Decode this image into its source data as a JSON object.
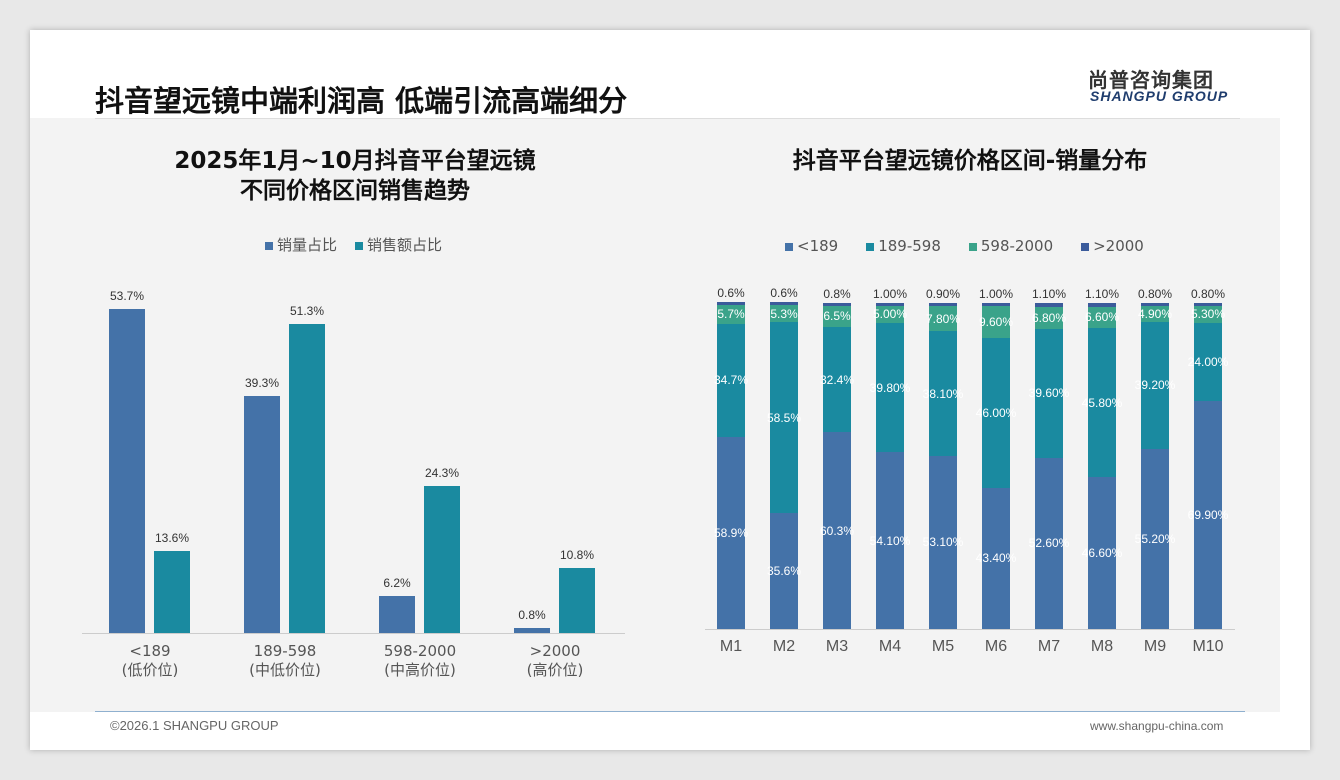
{
  "header": {
    "title": "抖音望远镜中端利润高 低端引流高端细分",
    "logo_cn": "尚普咨询集团",
    "logo_en": "SHANGPU GROUP"
  },
  "footer": {
    "copyright": "©2026.1 SHANGPU GROUP",
    "url": "www.shangpu-china.com"
  },
  "colors": {
    "lt189": "#4472a8",
    "r189_598": "#1a8aa0",
    "r598_2000": "#3aa38a",
    "gt2000": "#3b5b9b"
  },
  "chart_data": [
    {
      "type": "bar",
      "title": "2025年1月~10月抖音平台望远镜",
      "subtitle": "不同价格区间销售趋势",
      "categories": [
        "<189",
        "189-598",
        "598-2000",
        ">2000"
      ],
      "category_sub": [
        "(低价位)",
        "(中低价位)",
        "(中高价位)",
        "(高价位)"
      ],
      "series": [
        {
          "name": "销量占比",
          "values": [
            53.7,
            39.3,
            6.2,
            0.8
          ],
          "labels": [
            "53.7%",
            "39.3%",
            "6.2%",
            "0.8%"
          ]
        },
        {
          "name": "销售额占比",
          "values": [
            13.6,
            51.3,
            24.3,
            10.8
          ],
          "labels": [
            "13.6%",
            "51.3%",
            "24.3%",
            "10.8%"
          ]
        }
      ],
      "legend": "top",
      "ylim": [
        0,
        60
      ]
    },
    {
      "type": "bar",
      "stacked": true,
      "title": "抖音平台望远镜价格区间-销量分布",
      "categories": [
        "M1",
        "M2",
        "M3",
        "M4",
        "M5",
        "M6",
        "M7",
        "M8",
        "M9",
        "M10"
      ],
      "series": [
        {
          "name": "<189",
          "values": [
            58.9,
            35.6,
            60.3,
            54.1,
            53.1,
            43.4,
            52.6,
            46.6,
            55.2,
            69.9
          ],
          "labels": [
            "58.9%",
            "35.6%",
            "60.3%",
            "54.10%",
            "53.10%",
            "43.40%",
            "52.60%",
            "46.60%",
            "55.20%",
            "69.90%"
          ]
        },
        {
          "name": "189-598",
          "values": [
            34.7,
            58.5,
            32.4,
            39.8,
            38.1,
            46.0,
            39.6,
            45.8,
            39.2,
            24.0
          ],
          "labels": [
            "34.7%",
            "58.5%",
            "32.4%",
            "39.80%",
            "38.10%",
            "46.00%",
            "39.60%",
            "45.80%",
            "39.20%",
            "24.00%"
          ]
        },
        {
          "name": "598-2000",
          "values": [
            5.7,
            5.3,
            6.5,
            5.0,
            7.8,
            9.6,
            6.8,
            6.6,
            4.9,
            5.3
          ],
          "labels": [
            "5.7%",
            "5.3%",
            "6.5%",
            "5.00%",
            "7.80%",
            "9.60%",
            "6.80%",
            "6.60%",
            "4.90%",
            "5.30%"
          ]
        },
        {
          "name": ">2000",
          "values": [
            0.6,
            0.6,
            0.8,
            1.0,
            0.9,
            1.0,
            1.1,
            1.1,
            0.8,
            0.8
          ],
          "labels": [
            "0.6%",
            "0.6%",
            "0.8%",
            "1.00%",
            "0.90%",
            "1.00%",
            "1.10%",
            "1.10%",
            "0.80%",
            "0.80%"
          ]
        }
      ],
      "legend": "top",
      "ylim": [
        0,
        100
      ]
    }
  ]
}
